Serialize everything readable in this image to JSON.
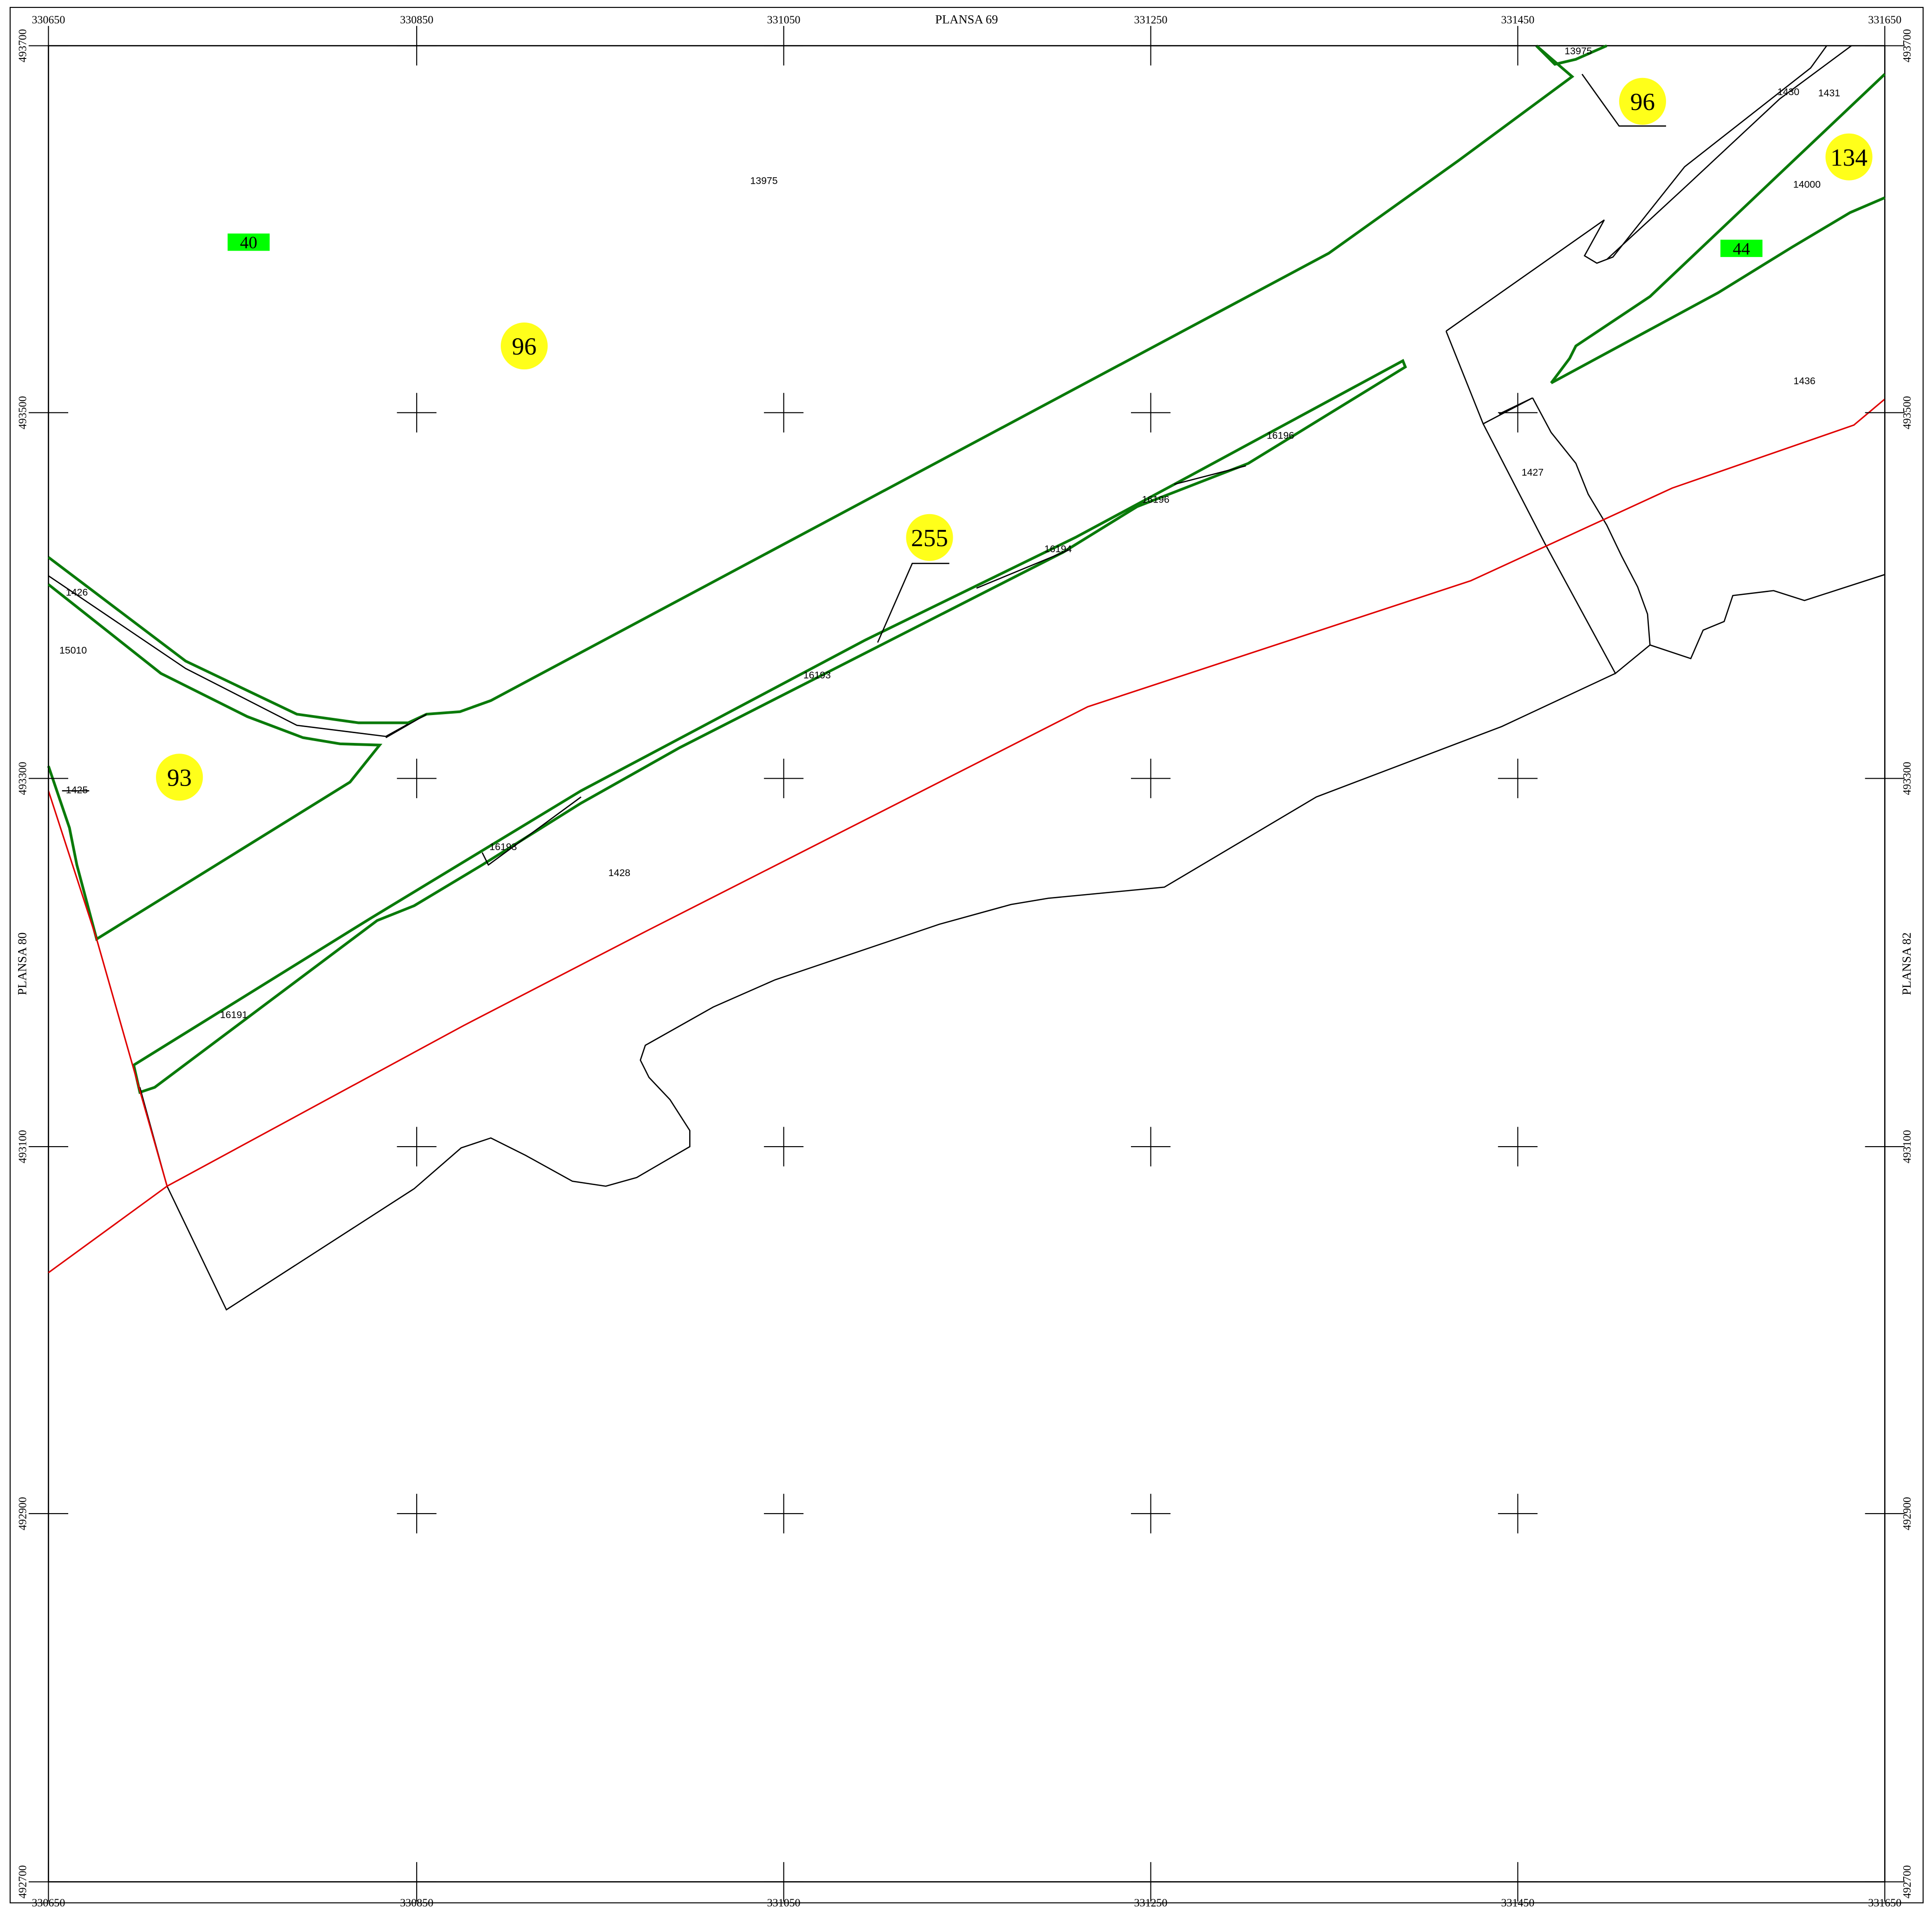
{
  "map": {
    "top_label": "PLANSA  69",
    "left_label": "PLANSA  80",
    "right_label": "PLANSA  82",
    "x_labels": [
      "330650",
      "330850",
      "331050",
      "331250",
      "331450",
      "331650"
    ],
    "y_labels": [
      "493700",
      "493500",
      "493300",
      "493100",
      "492900",
      "492700"
    ],
    "parcels": [
      "13975",
      "13975",
      "1430",
      "1431",
      "14000",
      "1436",
      "1427",
      "16196",
      "16196",
      "16194",
      "16193",
      "16193",
      "16191",
      "1426",
      "15010",
      "1425",
      "1428"
    ],
    "circle_labels": [
      "96",
      "96",
      "255",
      "93",
      "134"
    ],
    "green_labels": [
      "40",
      "44"
    ]
  }
}
